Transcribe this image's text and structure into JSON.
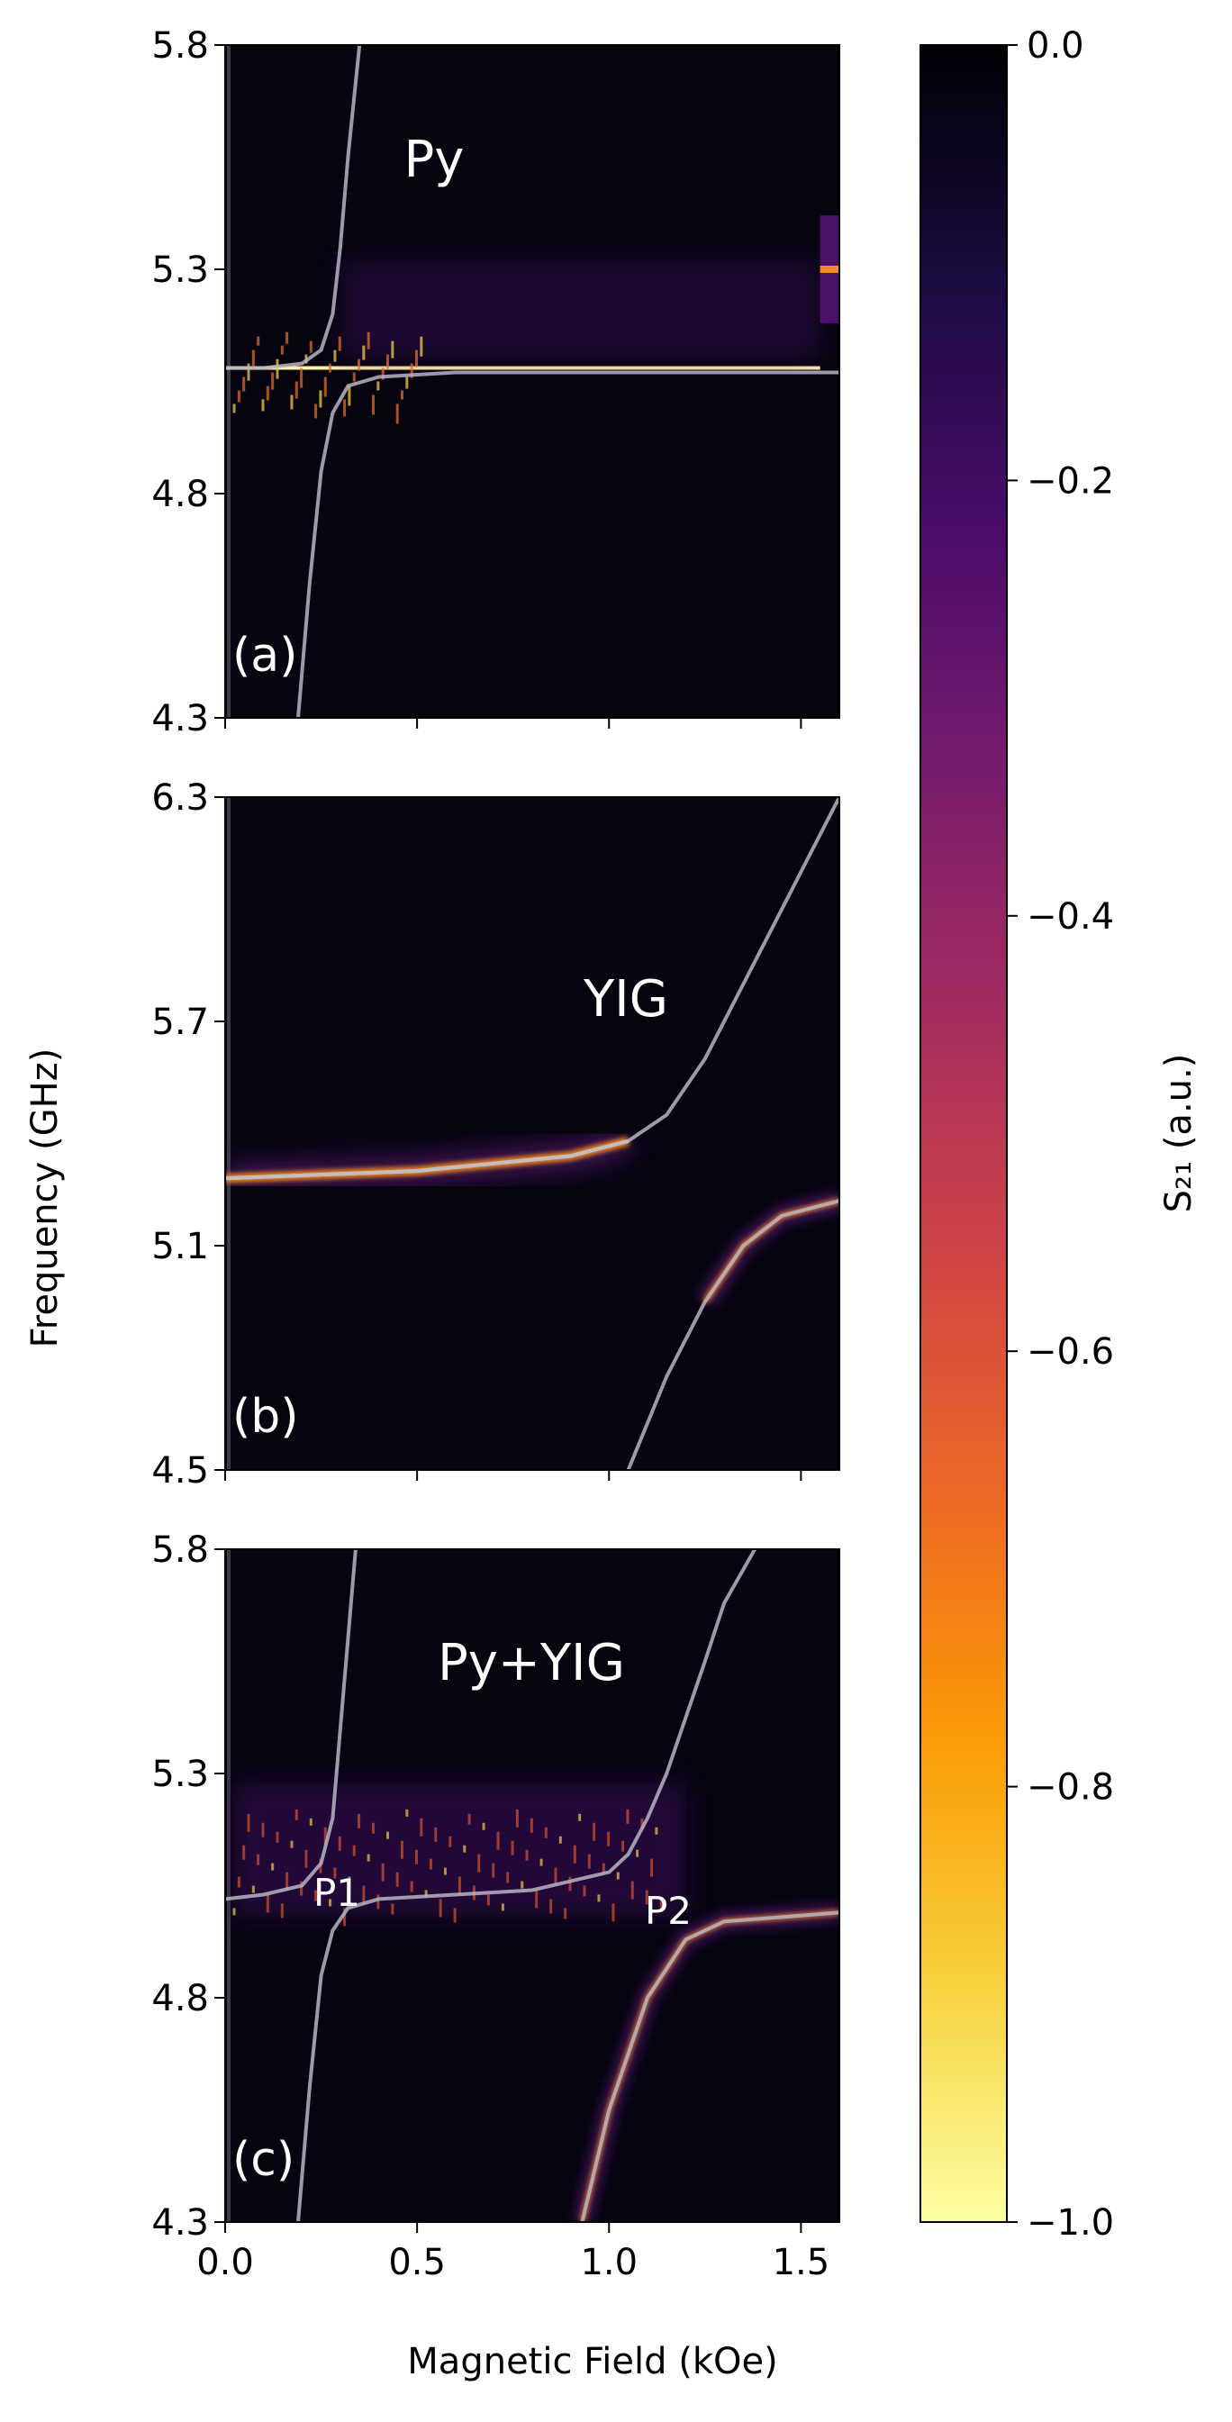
{
  "chart_data": [
    {
      "type": "heatmap",
      "panel": "(a)",
      "material": "Py",
      "xlim": [
        0.0,
        1.6
      ],
      "ylim": [
        4.3,
        5.8
      ],
      "yticks": [
        "4.3",
        "4.8",
        "5.3",
        "5.8"
      ],
      "xticks": [
        "0.0",
        "0.5",
        "1.0",
        "1.5"
      ],
      "xticklabels_visible": false,
      "branches": [
        {
          "x": [
            0.0,
            0.1,
            0.2,
            0.25,
            0.28,
            0.3,
            0.32,
            0.35
          ],
          "y": [
            5.08,
            5.08,
            5.09,
            5.12,
            5.2,
            5.35,
            5.55,
            5.8
          ]
        },
        {
          "x": [
            0.19,
            0.22,
            0.25,
            0.28,
            0.32,
            0.4,
            0.6,
            1.0,
            1.6
          ],
          "y": [
            4.3,
            4.6,
            4.85,
            4.98,
            5.04,
            5.06,
            5.07,
            5.07,
            5.07
          ]
        }
      ],
      "resonance_band": {
        "x": [
          0.0,
          1.55
        ],
        "y": [
          5.08,
          5.08
        ]
      },
      "resonance_band_end": {
        "x": [
          1.55,
          1.6
        ],
        "y": [
          5.3,
          5.3
        ]
      }
    },
    {
      "type": "heatmap",
      "panel": "(b)",
      "material": "YIG",
      "xlim": [
        0.0,
        1.6
      ],
      "ylim": [
        4.5,
        6.3
      ],
      "yticks": [
        "4.5",
        "5.1",
        "5.7",
        "6.3"
      ],
      "xticks": [
        "0.0",
        "0.5",
        "1.0",
        "1.5"
      ],
      "xticklabels_visible": false,
      "branches": [
        {
          "x": [
            0.0,
            0.5,
            0.9,
            1.05,
            1.15,
            1.25,
            1.35,
            1.45,
            1.6
          ],
          "y": [
            5.28,
            5.3,
            5.34,
            5.38,
            5.45,
            5.6,
            5.8,
            6.0,
            6.3
          ]
        },
        {
          "x": [
            1.05,
            1.15,
            1.25,
            1.35,
            1.45,
            1.6
          ],
          "y": [
            4.5,
            4.75,
            4.95,
            5.1,
            5.18,
            5.22
          ]
        }
      ],
      "resonance_band": {
        "x": [
          0.0,
          1.25
        ],
        "y": [
          5.28,
          5.38
        ]
      }
    },
    {
      "type": "heatmap",
      "panel": "(c)",
      "material": "Py+YIG",
      "xlim": [
        0.0,
        1.6
      ],
      "ylim": [
        4.3,
        5.8
      ],
      "yticks": [
        "4.3",
        "4.8",
        "5.3",
        "5.8"
      ],
      "xticks": [
        "0.0",
        "0.5",
        "1.0",
        "1.5"
      ],
      "xticklabels_visible": true,
      "peaks": [
        "P1",
        "P2"
      ],
      "branches": [
        {
          "x": [
            0.0,
            0.1,
            0.2,
            0.25,
            0.28,
            0.3,
            0.32,
            0.34
          ],
          "y": [
            5.02,
            5.03,
            5.05,
            5.1,
            5.2,
            5.4,
            5.6,
            5.8
          ]
        },
        {
          "x": [
            0.19,
            0.22,
            0.25,
            0.28,
            0.32,
            0.4,
            0.6,
            0.8,
            1.0,
            1.05,
            1.1,
            1.15,
            1.25,
            1.3,
            1.38
          ],
          "y": [
            4.3,
            4.6,
            4.85,
            4.95,
            5.0,
            5.02,
            5.03,
            5.04,
            5.08,
            5.12,
            5.2,
            5.3,
            5.55,
            5.68,
            5.8
          ]
        },
        {
          "x": [
            0.93,
            1.0,
            1.1,
            1.2,
            1.3,
            1.45,
            1.6
          ],
          "y": [
            4.3,
            4.55,
            4.8,
            4.93,
            4.97,
            4.98,
            4.99
          ]
        }
      ]
    }
  ],
  "xlabel": "Magnetic Field (kOe)",
  "ylabel": "Frequency (GHz)",
  "colorbar": {
    "label": "S₂₁ (a.u.)",
    "range": [
      -1.0,
      0.0
    ],
    "ticks": [
      "0.0",
      "−0.2",
      "−0.4",
      "−0.6",
      "−0.8",
      "−1.0"
    ],
    "colormap": "inferno",
    "colors": [
      "#000004",
      "#1b0c41",
      "#4a0c6b",
      "#781c6d",
      "#a52c60",
      "#cf4446",
      "#ed6925",
      "#fb9b06",
      "#f7d13d",
      "#fcffa4"
    ]
  },
  "colors": {
    "background": "#05040f",
    "fit_curve": "#b8b4c4",
    "band_core": "#fff1a8",
    "band_mid": "#f38b20",
    "band_outer": "#6a1b8a"
  }
}
